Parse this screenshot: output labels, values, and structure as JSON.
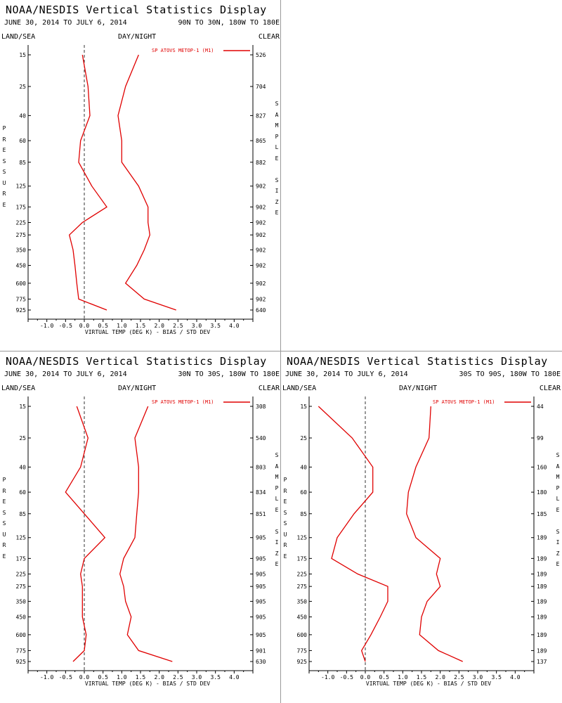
{
  "colors": {
    "series": "#e00000",
    "axis": "#000000",
    "zero_line": "#333333",
    "separator": "#999999"
  },
  "chart_data": [
    {
      "type": "line",
      "title": "NOAA/NESDIS Vertical Statistics Display",
      "date_range": "JUNE 30, 2014 TO JULY 6, 2014",
      "region": "90N TO 30N, 180W TO 180E",
      "land_sea": "LAND/SEA",
      "day_night": "DAY/NIGHT",
      "clear": "CLEAR",
      "ylabel": "PRESSURE",
      "y2label": "SAMPLE SIZE",
      "xlabel": "VIRTUAL TEMP (DEG K) - BIAS / STD DEV",
      "legend": "SP ATOVS METOP-1 (M1)",
      "xlim": [
        -1.5,
        4.5
      ],
      "x_ticks": [
        "-1.0",
        "-0.5",
        "0.0",
        "0.5",
        "1.0",
        "1.5",
        "2.0",
        "2.5",
        "3.0",
        "3.5",
        "4.0"
      ],
      "pressure": [
        "15",
        "25",
        "40",
        "60",
        "85",
        "125",
        "175",
        "225",
        "275",
        "350",
        "450",
        "600",
        "775",
        "925"
      ],
      "sample_size": [
        "526",
        "704",
        "827",
        "865",
        "882",
        "902",
        "902",
        "902",
        "902",
        "902",
        "902",
        "902",
        "902",
        "640"
      ],
      "bias": [
        -0.05,
        0.1,
        0.15,
        -0.1,
        -0.15,
        0.2,
        0.6,
        -0.05,
        -0.4,
        -0.3,
        -0.25,
        -0.2,
        -0.15,
        0.6
      ],
      "std_dev": [
        1.45,
        1.1,
        0.9,
        1.0,
        1.0,
        1.45,
        1.7,
        1.7,
        1.75,
        1.6,
        1.4,
        1.1,
        1.6,
        2.45
      ]
    },
    {
      "type": "line",
      "title": "NOAA/NESDIS Vertical Statistics Display",
      "date_range": "JUNE 30, 2014 TO JULY 6, 2014",
      "region": "30N TO 30S, 180W TO 180E",
      "land_sea": "LAND/SEA",
      "day_night": "DAY/NIGHT",
      "clear": "CLEAR",
      "ylabel": "PRESSURE",
      "y2label": "SAMPLE SIZE",
      "xlabel": "VIRTUAL TEMP (DEG K) - BIAS / STD DEV",
      "legend": "SP ATOVS METOP-1 (M1)",
      "xlim": [
        -1.5,
        4.5
      ],
      "x_ticks": [
        "-1.0",
        "-0.5",
        "0.0",
        "0.5",
        "1.0",
        "1.5",
        "2.0",
        "2.5",
        "3.0",
        "3.5",
        "4.0"
      ],
      "pressure": [
        "15",
        "25",
        "40",
        "60",
        "85",
        "125",
        "175",
        "225",
        "275",
        "350",
        "450",
        "600",
        "775",
        "925"
      ],
      "sample_size": [
        "308",
        "540",
        "803",
        "834",
        "851",
        "905",
        "905",
        "905",
        "905",
        "905",
        "905",
        "905",
        "901",
        "630"
      ],
      "bias": [
        -0.2,
        0.1,
        -0.1,
        -0.5,
        0.0,
        0.55,
        0.0,
        -0.1,
        -0.05,
        -0.05,
        -0.05,
        0.05,
        0.0,
        -0.3
      ],
      "std_dev": [
        1.7,
        1.35,
        1.45,
        1.45,
        1.4,
        1.35,
        1.05,
        0.95,
        1.05,
        1.1,
        1.25,
        1.15,
        1.45,
        2.35
      ]
    },
    {
      "type": "line",
      "title": "NOAA/NESDIS Vertical Statistics Display",
      "date_range": "JUNE 30, 2014 TO JULY 6, 2014",
      "region": "30S TO 90S, 180W TO 180E",
      "land_sea": "LAND/SEA",
      "day_night": "DAY/NIGHT",
      "clear": "CLEAR",
      "ylabel": "PRESSURE",
      "y2label": "SAMPLE SIZE",
      "xlabel": "VIRTUAL TEMP (DEG K) - BIAS / STD DEV",
      "legend": "SP ATOVS METOP-1 (M1)",
      "xlim": [
        -1.5,
        4.5
      ],
      "x_ticks": [
        "-1.0",
        "-0.5",
        "0.0",
        "0.5",
        "1.0",
        "1.5",
        "2.0",
        "2.5",
        "3.0",
        "3.5",
        "4.0"
      ],
      "pressure": [
        "15",
        "25",
        "40",
        "60",
        "85",
        "125",
        "175",
        "225",
        "275",
        "350",
        "450",
        "600",
        "775",
        "925"
      ],
      "sample_size": [
        "44",
        "99",
        "160",
        "180",
        "185",
        "189",
        "189",
        "189",
        "189",
        "189",
        "189",
        "189",
        "189",
        "137"
      ],
      "bias": [
        -1.25,
        -0.35,
        0.2,
        0.2,
        -0.3,
        -0.75,
        -0.9,
        -0.2,
        0.6,
        0.6,
        0.4,
        0.15,
        -0.1,
        0.0
      ],
      "std_dev": [
        1.75,
        1.7,
        1.35,
        1.15,
        1.1,
        1.35,
        2.0,
        1.9,
        2.0,
        1.65,
        1.5,
        1.45,
        1.95,
        2.6
      ]
    }
  ]
}
